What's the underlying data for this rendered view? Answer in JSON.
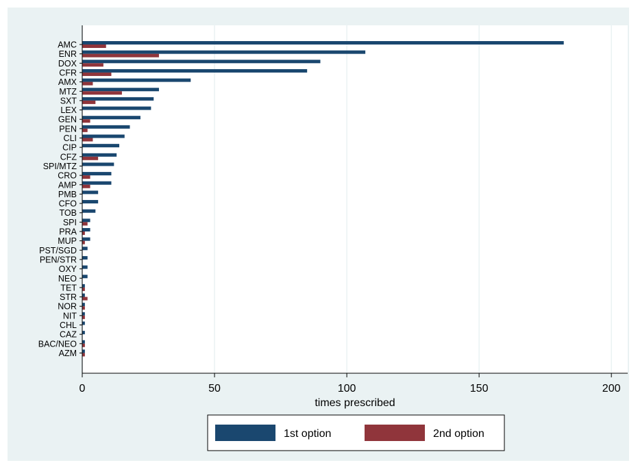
{
  "chart_data": {
    "type": "bar",
    "orientation": "horizontal",
    "categories": [
      "AMC",
      "ENR",
      "DOX",
      "CFR",
      "AMX",
      "MTZ",
      "SXT",
      "LEX",
      "GEN",
      "PEN",
      "CLI",
      "CIP",
      "CFZ",
      "SPI/MTZ",
      "CRO",
      "AMP",
      "PMB",
      "CFO",
      "TOB",
      "SPI",
      "PRA",
      "MUP",
      "PST/SGD",
      "PEN/STR",
      "OXY",
      "NEO",
      "TET",
      "STR",
      "NOR",
      "NIT",
      "CHL",
      "CAZ",
      "BAC/NEO",
      "AZM"
    ],
    "series": [
      {
        "name": "1st option",
        "color": "#1a476f",
        "values": [
          182,
          107,
          90,
          85,
          41,
          29,
          27,
          26,
          22,
          18,
          16,
          14,
          13,
          12,
          11,
          11,
          6,
          6,
          5,
          3,
          3,
          3,
          2,
          2,
          2,
          2,
          1,
          1,
          1,
          1,
          1,
          1,
          1,
          1
        ]
      },
      {
        "name": "2nd option",
        "color": "#90353b",
        "values": [
          9,
          29,
          8,
          11,
          4,
          15,
          5,
          0,
          3,
          2,
          4,
          0,
          6,
          0,
          3,
          3,
          0,
          0,
          0,
          2,
          1,
          1,
          0,
          0,
          0,
          0,
          1,
          2,
          1,
          1,
          0,
          0,
          1,
          1
        ]
      }
    ],
    "xlabel": "times prescribed",
    "ylabel": "",
    "xlim": [
      0,
      205
    ],
    "xticks": [
      0,
      50,
      100,
      150,
      200
    ],
    "grid": true,
    "legend_position": "bottom"
  },
  "colors": {
    "outer_background": "#eaf2f3",
    "plot_background": "#ffffff",
    "grid": "#eaf2f3"
  }
}
